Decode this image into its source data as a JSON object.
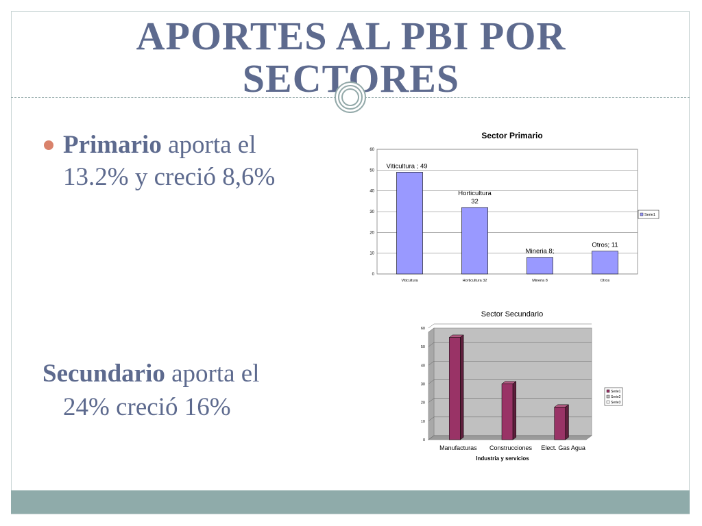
{
  "slide": {
    "title_line1": "APORTES AL PBI POR",
    "title_line2": "SECTORES",
    "bullet1_bold": "Primario",
    "bullet1_rest": " aporta el",
    "bullet1_line2": "13.2% y creció 8,6%",
    "para2_bold": "Secundario",
    "para2_rest": " aporta el",
    "para2_line2": "24%  creció 16%"
  },
  "colors": {
    "title": "#5d6a8e",
    "footer": "#8fabaa",
    "bullet": "#d9826b",
    "primary_bar": "#9999ff",
    "secondary_bar": "#993366",
    "plot_bg": "#c0c0c0"
  },
  "chart_data": [
    {
      "type": "bar",
      "title": "Sector Primario",
      "categories": [
        "Viticultura",
        "Horticultura    32",
        "Mineria        8",
        "Otros"
      ],
      "series": [
        {
          "name": "Serie1",
          "values": [
            49,
            32,
            8,
            11
          ]
        }
      ],
      "data_labels": [
        "Viticultura ; 49",
        "Horticultura\n32",
        "Mineria  8;",
        "Otros; 11"
      ],
      "ylim": [
        0,
        60
      ],
      "yticks": [
        "0",
        "10",
        "20",
        "30",
        "40",
        "50",
        "60"
      ],
      "xlabel": "",
      "ylabel": "",
      "grid": true,
      "legend": "right"
    },
    {
      "type": "bar",
      "title": "Sector Secundario",
      "categories": [
        "Manufacturas",
        "Construcciones",
        "Elect. Gas Agua"
      ],
      "series": [
        {
          "name": "Serie1",
          "values": [
            55,
            30,
            17.5
          ]
        }
      ],
      "legend_entries": [
        "Serie1",
        "Serie2",
        "Serie3"
      ],
      "ylim": [
        0,
        60
      ],
      "yticks": [
        "0",
        "10",
        "20",
        "30",
        "40",
        "50",
        "60"
      ],
      "xlabel": "Industria y servicios",
      "ylabel": "",
      "grid": true,
      "legend": "right"
    }
  ]
}
